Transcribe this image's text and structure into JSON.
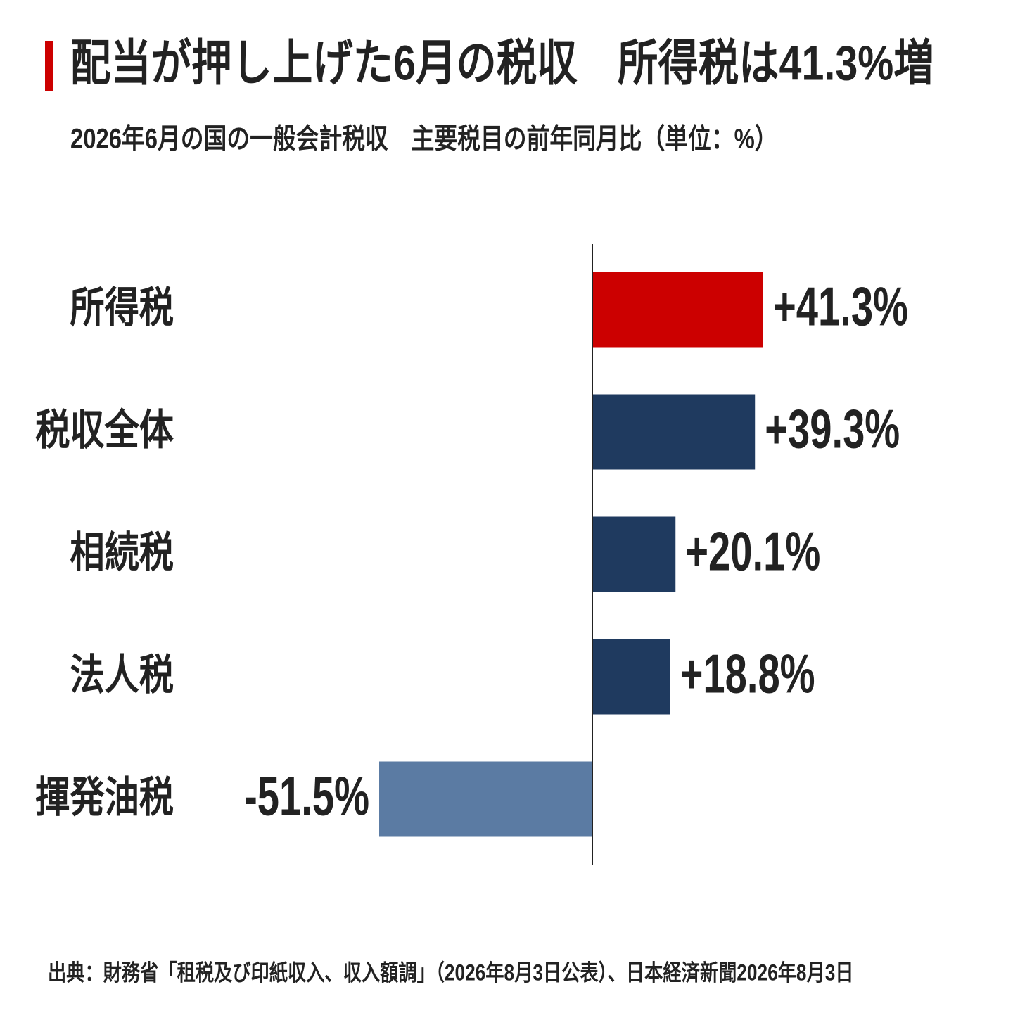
{
  "chart_data": {
    "type": "barh",
    "title": "配当が押し上げた6月の税収　所得税は41.3%増",
    "subtitle": "2026年6月の国の一般会計税収　主要税目の前年同月比（単位：%）",
    "source": "出典：財務省「租税及び印紙収入、収入額調」（2026年8月3日公表）、日本経済新聞2026年8月3日",
    "categories": [
      "所得税",
      "税収全体",
      "相続税",
      "法人税",
      "揮発油税"
    ],
    "values": [
      41.3,
      39.3,
      20.1,
      18.8,
      -51.5
    ],
    "value_labels": [
      "+41.3%",
      "+39.3%",
      "+20.1%",
      "+18.8%",
      "-51.5%"
    ],
    "colors": [
      "#cc0000",
      "#1f3a5f",
      "#1f3a5f",
      "#1f3a5f",
      "#5b7ba3"
    ],
    "xlim": [
      -60,
      60
    ]
  }
}
